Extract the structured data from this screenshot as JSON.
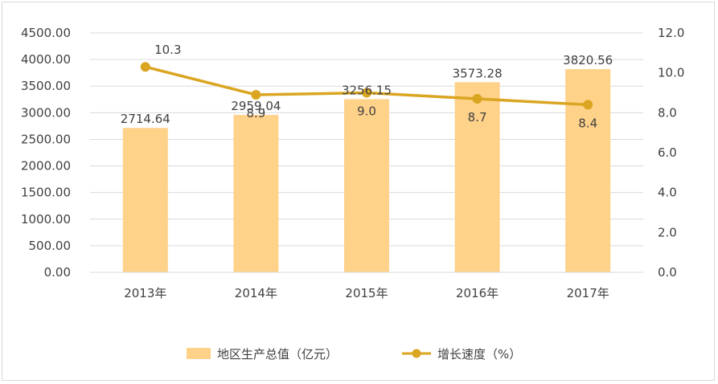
{
  "chart_data": {
    "type": "bar",
    "categories": [
      "2013年",
      "2014年",
      "2015年",
      "2016年",
      "2017年"
    ],
    "series": [
      {
        "name": "地区生产总值（亿元）",
        "type": "bar",
        "axis": "left",
        "values": [
          2714.64,
          2959.04,
          3256.15,
          3573.28,
          3820.56
        ],
        "labels": [
          "2714.64",
          "2959.04",
          "3256.15",
          "3573.28",
          "3820.56"
        ],
        "color": "#FFD28A"
      },
      {
        "name": "增长速度（%）",
        "type": "line",
        "axis": "right",
        "values": [
          10.3,
          8.9,
          9.0,
          8.7,
          8.4
        ],
        "labels": [
          "10.3",
          "8.9",
          "9.0",
          "8.7",
          "8.4"
        ],
        "color": "#DAA520"
      }
    ],
    "y_left": {
      "min": 0,
      "max": 4500,
      "ticks": [
        "0.00",
        "500.00",
        "1000.00",
        "1500.00",
        "2000.00",
        "2500.00",
        "3000.00",
        "3500.00",
        "4000.00",
        "4500.00"
      ]
    },
    "y_right": {
      "min": 0,
      "max": 12,
      "ticks": [
        "0.0",
        "2.0",
        "4.0",
        "6.0",
        "8.0",
        "10.0",
        "12.0"
      ]
    },
    "grid": true,
    "legend": "bottom"
  }
}
